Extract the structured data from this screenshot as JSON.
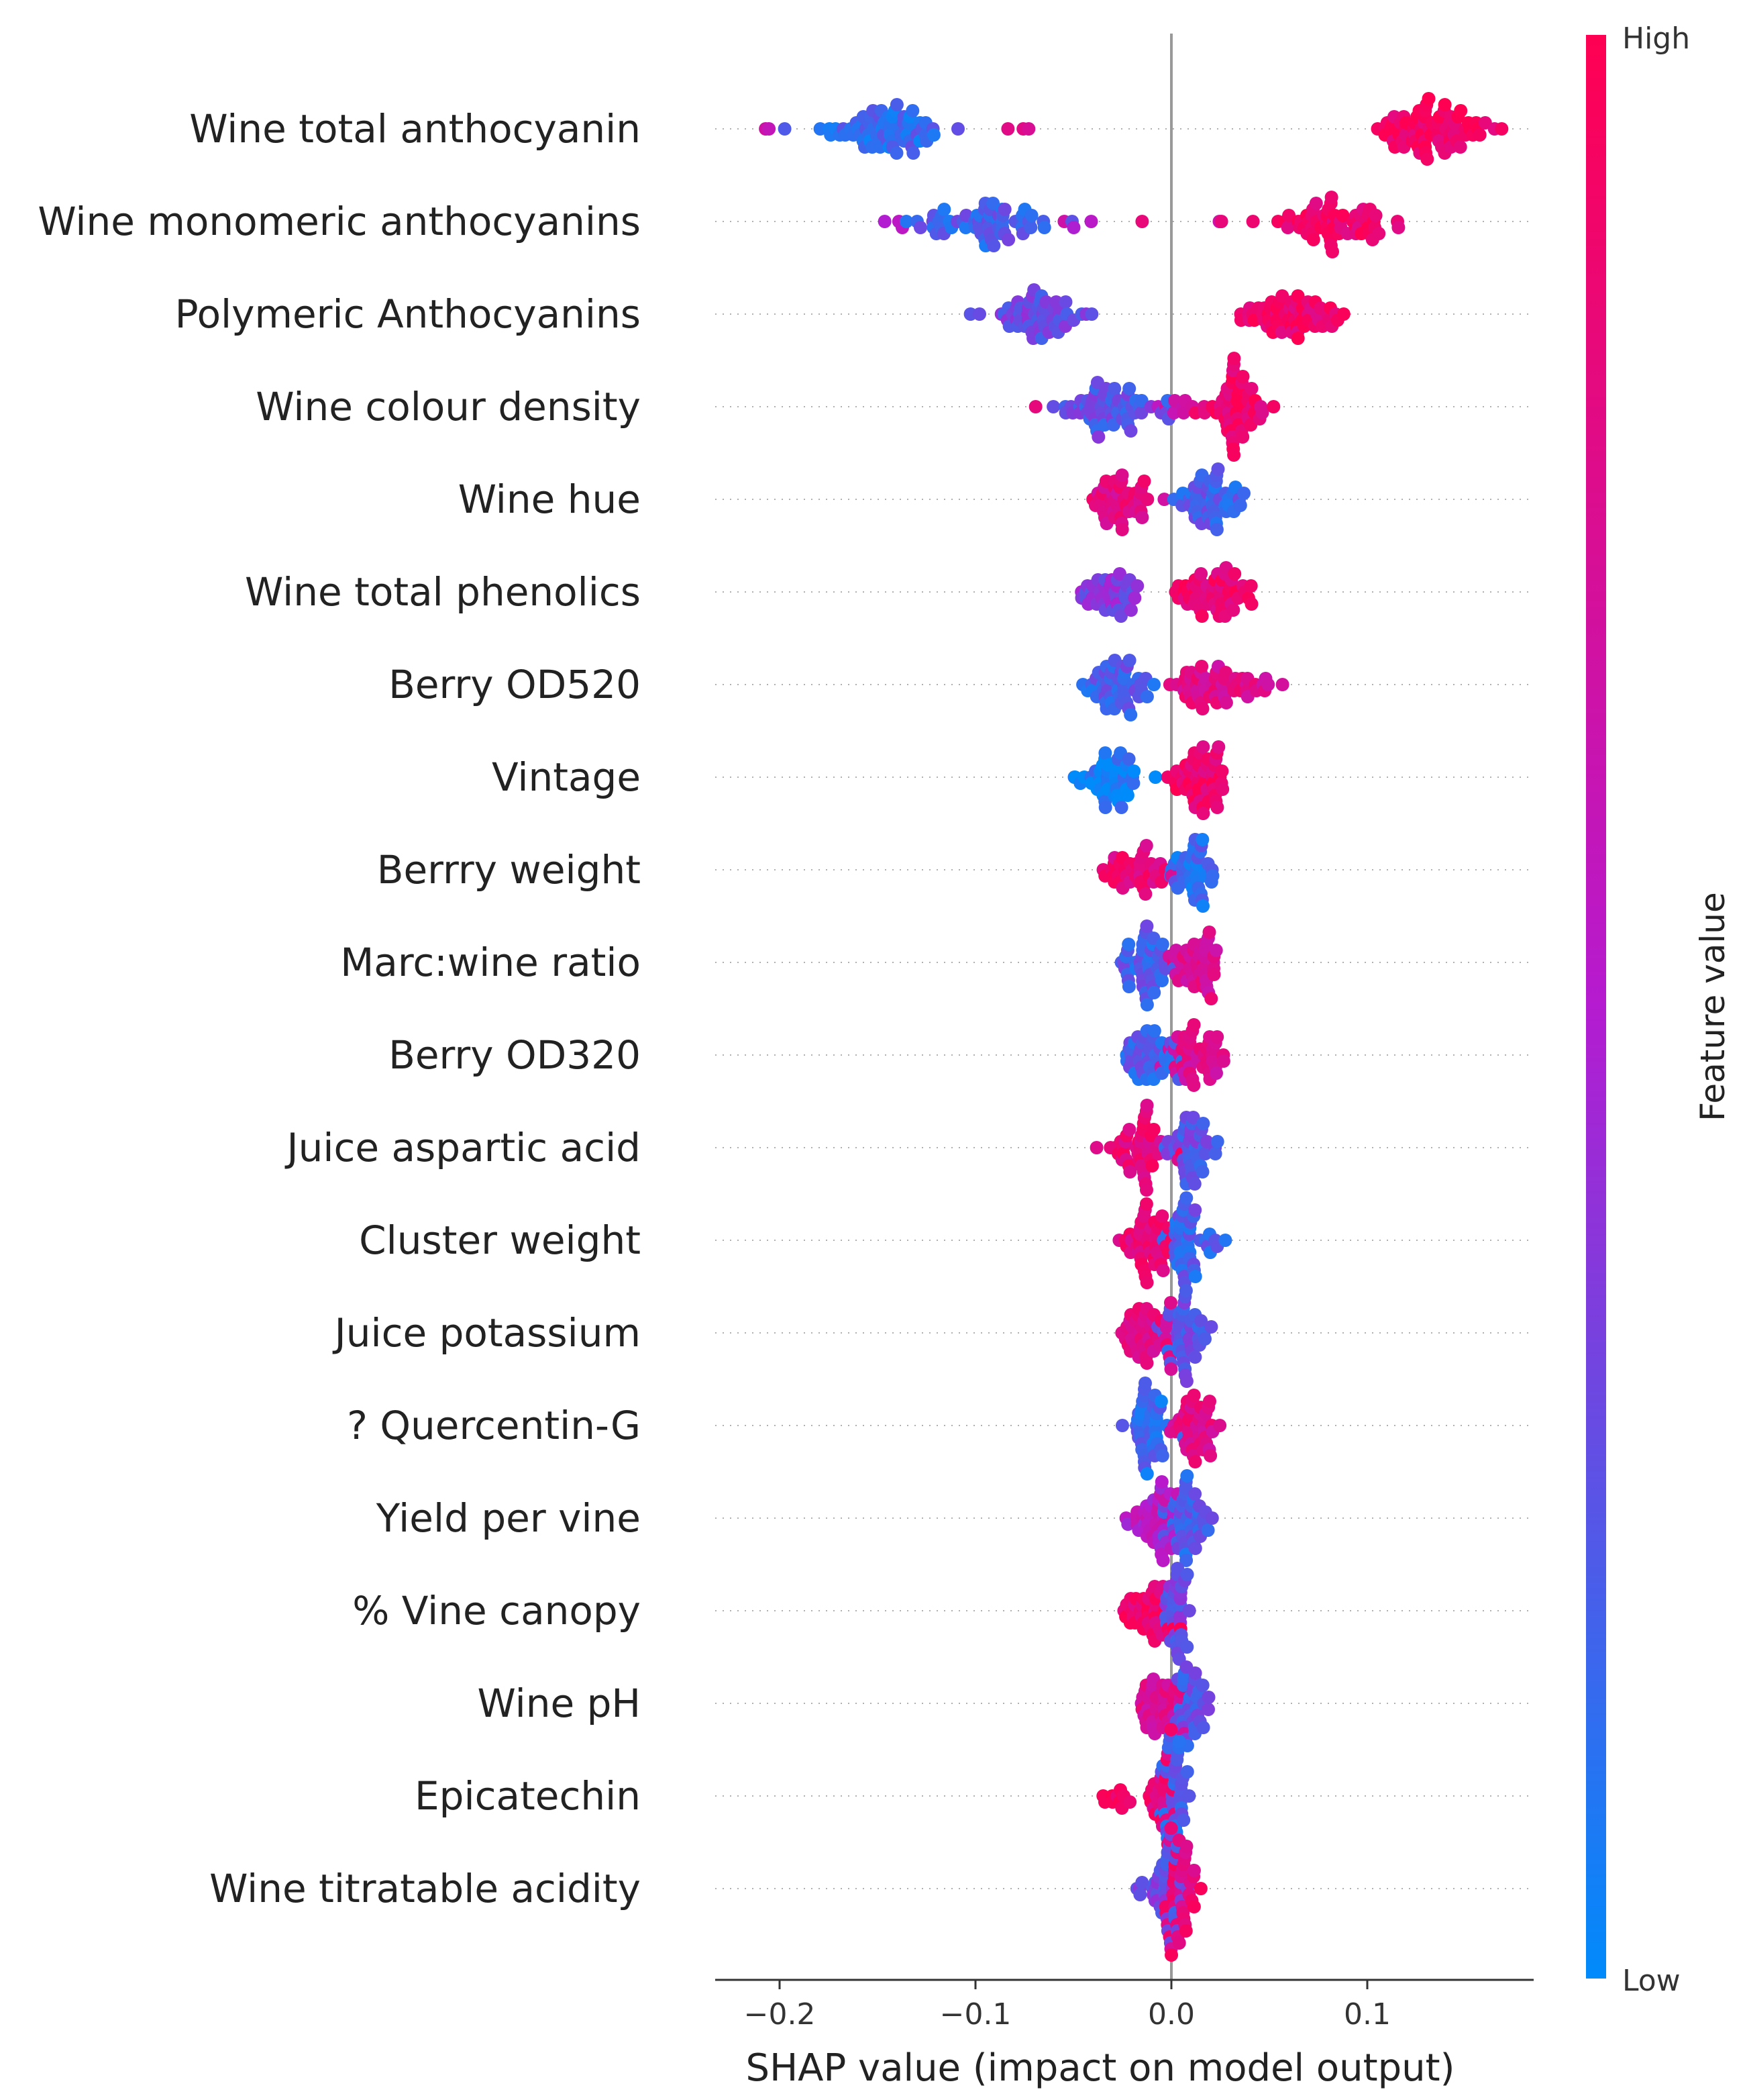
{
  "chart_data": {
    "type": "scatter",
    "subtype": "shap-beeswarm",
    "xlabel": "SHAP value (impact on model output)",
    "xlim": [
      -0.23,
      0.18
    ],
    "xticks": [
      -0.2,
      -0.1,
      0.0,
      0.1
    ],
    "xtick_labels": [
      "−0.2",
      "−0.1",
      "0.0",
      "0.1"
    ],
    "colorbar": {
      "label": "Feature value",
      "high": "High",
      "low": "Low",
      "high_color": "#ff0052",
      "mid_color": "#b51bd0",
      "low_color": "#008bfb"
    },
    "zero_line": true,
    "features": [
      {
        "name": "Wine total anthocyanin",
        "clusters": [
          {
            "center": -0.15,
            "spread": 0.03,
            "n": 70,
            "value": 0.15
          },
          {
            "center": -0.205,
            "spread": 0.006,
            "n": 2,
            "value": 0.7
          },
          {
            "center": -0.075,
            "spread": 0.006,
            "n": 3,
            "value": 0.85
          },
          {
            "center": 0.132,
            "spread": 0.026,
            "n": 75,
            "value": 0.93
          }
        ]
      },
      {
        "name": "Wine monomeric anthocyanins",
        "clusters": [
          {
            "center": -0.095,
            "spread": 0.03,
            "n": 60,
            "value": 0.2
          },
          {
            "center": -0.14,
            "spread": 0.006,
            "n": 3,
            "value": 0.6
          },
          {
            "center": -0.05,
            "spread": 0.008,
            "n": 3,
            "value": 0.55
          },
          {
            "center": -0.015,
            "spread": 0.003,
            "n": 1,
            "value": 0.75
          },
          {
            "center": 0.025,
            "spread": 0.003,
            "n": 2,
            "value": 0.75
          },
          {
            "center": 0.085,
            "spread": 0.025,
            "n": 60,
            "value": 0.9
          }
        ]
      },
      {
        "name": "Polymeric Anthocyanins",
        "clusters": [
          {
            "center": -0.068,
            "spread": 0.022,
            "n": 55,
            "value": 0.3
          },
          {
            "center": 0.06,
            "spread": 0.022,
            "n": 60,
            "value": 0.9
          }
        ]
      },
      {
        "name": "Wine colour density",
        "clusters": [
          {
            "center": -0.03,
            "spread": 0.022,
            "n": 60,
            "value": 0.25
          },
          {
            "center": -0.07,
            "spread": 0.004,
            "n": 1,
            "value": 0.75
          },
          {
            "center": 0.0,
            "spread": 0.01,
            "n": 8,
            "value": 0.65
          },
          {
            "center": 0.03,
            "spread": 0.015,
            "n": 55,
            "value": 0.88
          }
        ]
      },
      {
        "name": "Wine hue",
        "clusters": [
          {
            "center": -0.028,
            "spread": 0.015,
            "n": 45,
            "value": 0.8
          },
          {
            "center": 0.02,
            "spread": 0.015,
            "n": 50,
            "value": 0.2
          }
        ]
      },
      {
        "name": "Wine total phenolics",
        "clusters": [
          {
            "center": -0.03,
            "spread": 0.015,
            "n": 40,
            "value": 0.35
          },
          {
            "center": 0.02,
            "spread": 0.015,
            "n": 55,
            "value": 0.88
          }
        ]
      },
      {
        "name": "Berry OD520",
        "clusters": [
          {
            "center": -0.028,
            "spread": 0.016,
            "n": 50,
            "value": 0.2
          },
          {
            "center": 0.025,
            "spread": 0.018,
            "n": 55,
            "value": 0.78
          }
        ]
      },
      {
        "name": "Vintage",
        "clusters": [
          {
            "center": -0.03,
            "spread": 0.013,
            "n": 45,
            "value": 0.05
          },
          {
            "center": 0.015,
            "spread": 0.012,
            "n": 55,
            "value": 0.9
          }
        ]
      },
      {
        "name": "Berrry weight",
        "clusters": [
          {
            "center": -0.018,
            "spread": 0.014,
            "n": 40,
            "value": 0.85
          },
          {
            "center": 0.01,
            "spread": 0.01,
            "n": 40,
            "value": 0.15
          }
        ]
      },
      {
        "name": "Marc:wine ratio",
        "clusters": [
          {
            "center": -0.012,
            "spread": 0.012,
            "n": 45,
            "value": 0.2
          },
          {
            "center": 0.012,
            "spread": 0.012,
            "n": 45,
            "value": 0.75
          }
        ]
      },
      {
        "name": "Berry OD320",
        "clusters": [
          {
            "center": -0.01,
            "spread": 0.012,
            "n": 45,
            "value": 0.2
          },
          {
            "center": 0.012,
            "spread": 0.012,
            "n": 45,
            "value": 0.75
          }
        ]
      },
      {
        "name": "Juice aspartic acid",
        "clusters": [
          {
            "center": -0.015,
            "spread": 0.014,
            "n": 45,
            "value": 0.85
          },
          {
            "center": 0.01,
            "spread": 0.01,
            "n": 45,
            "value": 0.25
          }
        ]
      },
      {
        "name": "Cluster weight",
        "clusters": [
          {
            "center": -0.012,
            "spread": 0.011,
            "n": 45,
            "value": 0.85
          },
          {
            "center": 0.01,
            "spread": 0.01,
            "n": 45,
            "value": 0.2
          }
        ]
      },
      {
        "name": "Juice potassium",
        "clusters": [
          {
            "center": -0.012,
            "spread": 0.011,
            "n": 45,
            "value": 0.8
          },
          {
            "center": 0.008,
            "spread": 0.01,
            "n": 45,
            "value": 0.25
          }
        ]
      },
      {
        "name": "? Quercentin-G",
        "clusters": [
          {
            "center": -0.012,
            "spread": 0.01,
            "n": 45,
            "value": 0.15
          },
          {
            "center": 0.01,
            "spread": 0.01,
            "n": 45,
            "value": 0.8
          }
        ]
      },
      {
        "name": "Yield per vine",
        "clusters": [
          {
            "center": -0.008,
            "spread": 0.01,
            "n": 45,
            "value": 0.55
          },
          {
            "center": 0.008,
            "spread": 0.01,
            "n": 45,
            "value": 0.2
          }
        ]
      },
      {
        "name": "% Vine canopy",
        "clusters": [
          {
            "center": -0.012,
            "spread": 0.012,
            "n": 40,
            "value": 0.9
          },
          {
            "center": 0.003,
            "spread": 0.005,
            "n": 35,
            "value": 0.3
          }
        ]
      },
      {
        "name": "Wine pH",
        "clusters": [
          {
            "center": -0.005,
            "spread": 0.01,
            "n": 45,
            "value": 0.75
          },
          {
            "center": 0.01,
            "spread": 0.01,
            "n": 35,
            "value": 0.25
          }
        ]
      },
      {
        "name": "Epicatechin",
        "clusters": [
          {
            "center": -0.03,
            "spread": 0.008,
            "n": 10,
            "value": 0.95
          },
          {
            "center": -0.005,
            "spread": 0.007,
            "n": 30,
            "value": 0.85
          },
          {
            "center": 0.002,
            "spread": 0.006,
            "n": 40,
            "value": 0.2
          }
        ]
      },
      {
        "name": "Wine titratable acidity",
        "clusters": [
          {
            "center": -0.004,
            "spread": 0.009,
            "n": 40,
            "value": 0.3
          },
          {
            "center": 0.004,
            "spread": 0.008,
            "n": 40,
            "value": 0.85
          }
        ]
      }
    ]
  }
}
